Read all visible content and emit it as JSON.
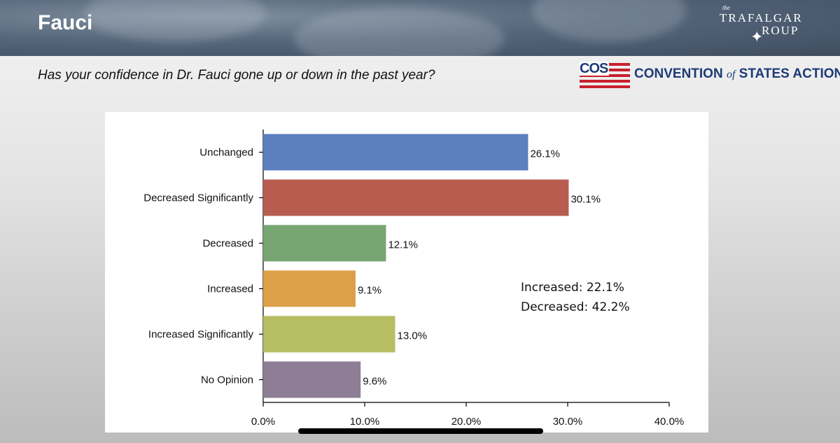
{
  "slide": {
    "title": "Fauci",
    "question": "Has your confidence in Dr. Fauci gone up or down in the past year?",
    "logo_trafalgar": {
      "the": "the",
      "line1": "TRAFALGAR",
      "line2": "ROUP"
    },
    "logo_cos": {
      "abbrev": "COS",
      "text_a": "CONVENTION ",
      "text_of": "of",
      "text_b": " STATES ACTION"
    }
  },
  "annotation": {
    "line1": "Increased: 22.1%",
    "line2": "Decreased: 42.2%"
  },
  "chart_data": {
    "type": "bar",
    "orientation": "horizontal",
    "categories": [
      "Unchanged",
      "Decreased Significantly",
      "Decreased",
      "Increased",
      "Increased Significantly",
      "No Opinion"
    ],
    "values": [
      26.1,
      30.1,
      12.1,
      9.1,
      13.0,
      9.6
    ],
    "value_labels": [
      "26.1%",
      "30.1%",
      "12.1%",
      "9.1%",
      "13.0%",
      "9.6%"
    ],
    "colors": [
      "#5b7fbf",
      "#b85c50",
      "#78a672",
      "#dd9f48",
      "#b7bd62",
      "#8d7d95"
    ],
    "xlim": [
      0,
      40
    ],
    "xticks": [
      0,
      10,
      20,
      30,
      40
    ],
    "xtick_labels": [
      "0.0%",
      "10.0%",
      "20.0%",
      "30.0%",
      "40.0%"
    ],
    "grid": false,
    "title": "",
    "xlabel": "",
    "ylabel": ""
  }
}
